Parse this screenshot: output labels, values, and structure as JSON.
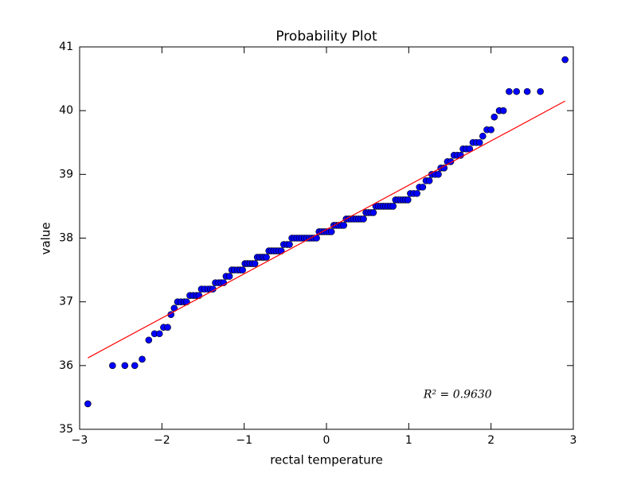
{
  "chart_data": {
    "type": "scatter",
    "title": "Probability Plot",
    "x_label": "rectal temperature",
    "y_label": "value",
    "annotation": "R² = 0.9630",
    "xlim": [
      -3,
      3
    ],
    "ylim": [
      35,
      41
    ],
    "xticks": [
      {
        "value": -3,
        "label": "−3"
      },
      {
        "value": -2,
        "label": "−2"
      },
      {
        "value": -1,
        "label": "−1"
      },
      0,
      1,
      2,
      3
    ],
    "yticks": [
      35,
      36,
      37,
      38,
      39,
      40,
      41
    ],
    "series": [
      {
        "style": "marker",
        "color": "#0000ff",
        "x": [
          -2.9,
          -2.6,
          -2.45,
          -2.33,
          -2.24,
          -2.16,
          -2.09,
          -2.03,
          -1.98,
          -1.93,
          -1.89,
          -1.85,
          -1.81,
          -1.77,
          -1.73,
          -1.7,
          -1.66,
          -1.62,
          -1.58,
          -1.55,
          -1.52,
          -1.48,
          -1.44,
          -1.41,
          -1.38,
          -1.35,
          -1.31,
          -1.28,
          -1.25,
          -1.22,
          -1.18,
          -1.15,
          -1.12,
          -1.08,
          -1.05,
          -1.02,
          -0.99,
          -0.96,
          -0.93,
          -0.9,
          -0.87,
          -0.84,
          -0.81,
          -0.78,
          -0.76,
          -0.73,
          -0.7,
          -0.67,
          -0.64,
          -0.61,
          -0.58,
          -0.55,
          -0.52,
          -0.48,
          -0.45,
          -0.42,
          -0.39,
          -0.36,
          -0.33,
          -0.3,
          -0.27,
          -0.24,
          -0.21,
          -0.18,
          -0.15,
          -0.12,
          -0.09,
          -0.06,
          -0.03,
          0.0,
          0.03,
          0.06,
          0.09,
          0.12,
          0.15,
          0.18,
          0.21,
          0.24,
          0.27,
          0.3,
          0.33,
          0.36,
          0.39,
          0.42,
          0.45,
          0.48,
          0.51,
          0.54,
          0.57,
          0.6,
          0.63,
          0.66,
          0.69,
          0.72,
          0.75,
          0.78,
          0.81,
          0.84,
          0.87,
          0.9,
          0.93,
          0.96,
          0.99,
          1.02,
          1.06,
          1.1,
          1.13,
          1.17,
          1.21,
          1.25,
          1.28,
          1.32,
          1.36,
          1.39,
          1.43,
          1.47,
          1.51,
          1.55,
          1.59,
          1.63,
          1.66,
          1.7,
          1.74,
          1.78,
          1.82,
          1.86,
          1.9,
          1.95,
          2.0,
          2.04,
          2.1,
          2.15,
          2.22,
          2.31,
          2.44,
          2.6,
          2.9
        ],
        "values": [
          35.4,
          36.0,
          36.0,
          36.0,
          36.1,
          36.4,
          36.5,
          36.5,
          36.6,
          36.6,
          36.8,
          36.9,
          37.0,
          37.0,
          37.0,
          37.0,
          37.1,
          37.1,
          37.1,
          37.1,
          37.2,
          37.2,
          37.2,
          37.2,
          37.2,
          37.3,
          37.3,
          37.3,
          37.3,
          37.4,
          37.4,
          37.5,
          37.5,
          37.5,
          37.5,
          37.5,
          37.6,
          37.6,
          37.6,
          37.6,
          37.6,
          37.7,
          37.7,
          37.7,
          37.7,
          37.7,
          37.8,
          37.8,
          37.8,
          37.8,
          37.8,
          37.8,
          37.9,
          37.9,
          37.9,
          38.0,
          38.0,
          38.0,
          38.0,
          38.0,
          38.0,
          38.0,
          38.0,
          38.0,
          38.0,
          38.0,
          38.1,
          38.1,
          38.1,
          38.1,
          38.1,
          38.1,
          38.2,
          38.2,
          38.2,
          38.2,
          38.2,
          38.3,
          38.3,
          38.3,
          38.3,
          38.3,
          38.3,
          38.3,
          38.3,
          38.4,
          38.4,
          38.4,
          38.4,
          38.5,
          38.5,
          38.5,
          38.5,
          38.5,
          38.5,
          38.5,
          38.5,
          38.6,
          38.6,
          38.6,
          38.6,
          38.6,
          38.6,
          38.7,
          38.7,
          38.7,
          38.8,
          38.8,
          38.9,
          38.9,
          39.0,
          39.0,
          39.0,
          39.1,
          39.1,
          39.2,
          39.2,
          39.3,
          39.3,
          39.3,
          39.4,
          39.4,
          39.4,
          39.5,
          39.5,
          39.5,
          39.6,
          39.7,
          39.7,
          39.9,
          40.0,
          40.0,
          40.3,
          40.3,
          40.3,
          40.3,
          40.8
        ]
      },
      {
        "style": "line",
        "color": "#ff0000",
        "x": [
          -2.9,
          2.9
        ],
        "values": [
          36.12,
          40.15
        ]
      }
    ]
  }
}
